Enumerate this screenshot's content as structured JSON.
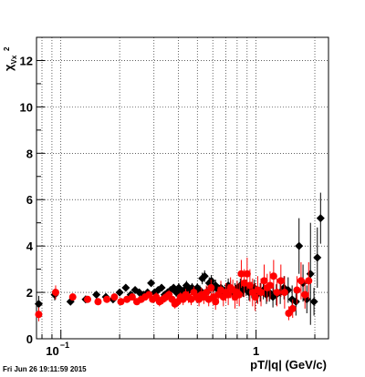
{
  "timestamp": "Fri Jun 26 19:11:59 2015",
  "chart_data": {
    "type": "scatter",
    "title": "",
    "xlabel": "pT/|q| (GeV/c)",
    "ylabel": "χ²_Vx",
    "ylabel_main": "χ",
    "ylabel_sup": "2",
    "ylabel_sub": "Vx",
    "xscale": "log",
    "xlim": [
      0.075,
      2.35
    ],
    "ylim": [
      0,
      13
    ],
    "grid": true,
    "y_ticks": [
      0,
      2,
      4,
      6,
      8,
      10,
      12
    ],
    "y_tick_labels": [
      "0",
      "2",
      "4",
      "6",
      "8",
      "10",
      "12"
    ],
    "x_major_ticks": [
      0.1,
      1
    ],
    "x_major_tick_label_base": "10",
    "x_major_tick_label_exp": "−1",
    "x_major_tick_label_one": "1",
    "x_minor_ticks": [
      0.08,
      0.09,
      0.2,
      0.3,
      0.4,
      0.5,
      0.6,
      0.7,
      0.8,
      0.9,
      2
    ],
    "series": [
      {
        "color": "#000000",
        "marker": "diamond",
        "x": [
          0.077,
          0.093,
          0.112,
          0.134,
          0.152,
          0.17,
          0.185,
          0.2,
          0.215,
          0.228,
          0.24,
          0.252,
          0.265,
          0.278,
          0.29,
          0.302,
          0.315,
          0.328,
          0.34,
          0.352,
          0.365,
          0.378,
          0.39,
          0.402,
          0.415,
          0.428,
          0.44,
          0.455,
          0.47,
          0.485,
          0.5,
          0.515,
          0.53,
          0.545,
          0.56,
          0.575,
          0.59,
          0.605,
          0.62,
          0.64,
          0.66,
          0.68,
          0.7,
          0.72,
          0.74,
          0.76,
          0.78,
          0.8,
          0.83,
          0.86,
          0.89,
          0.92,
          0.95,
          0.98,
          1.01,
          1.05,
          1.09,
          1.13,
          1.17,
          1.22,
          1.27,
          1.33,
          1.39,
          1.46,
          1.53,
          1.6,
          1.66,
          1.74,
          1.82,
          1.9,
          1.98,
          2.06,
          2.14
        ],
        "y": [
          1.5,
          1.9,
          1.6,
          1.7,
          1.9,
          1.8,
          1.7,
          2.0,
          2.2,
          1.9,
          2.1,
          2.0,
          1.9,
          2.0,
          2.4,
          2.0,
          2.1,
          2.2,
          1.9,
          2.0,
          2.1,
          2.2,
          2.0,
          2.2,
          2.0,
          2.1,
          2.3,
          2.1,
          2.2,
          2.0,
          2.2,
          2.1,
          2.6,
          2.7,
          2.0,
          2.4,
          2.5,
          2.2,
          2.3,
          2.1,
          2.2,
          2.0,
          2.1,
          2.3,
          2.2,
          2.0,
          2.1,
          2.2,
          2.3,
          2.1,
          2.2,
          2.0,
          2.1,
          2.2,
          1.9,
          2.0,
          2.1,
          1.9,
          2.0,
          1.8,
          1.9,
          2.0,
          2.2,
          2.1,
          1.7,
          1.6,
          4.0,
          2.4,
          1.7,
          2.8,
          1.6,
          3.5,
          5.2
        ],
        "yerr": [
          0.35,
          0.25,
          0.15,
          0.15,
          0.15,
          0.15,
          0.15,
          0.15,
          0.15,
          0.15,
          0.15,
          0.15,
          0.15,
          0.15,
          0.15,
          0.15,
          0.15,
          0.15,
          0.15,
          0.15,
          0.15,
          0.15,
          0.2,
          0.2,
          0.2,
          0.2,
          0.2,
          0.2,
          0.2,
          0.2,
          0.2,
          0.2,
          0.25,
          0.25,
          0.25,
          0.25,
          0.25,
          0.25,
          0.25,
          0.25,
          0.25,
          0.25,
          0.25,
          0.3,
          0.3,
          0.3,
          0.3,
          0.3,
          0.3,
          0.3,
          0.35,
          0.35,
          0.35,
          0.35,
          0.35,
          0.4,
          0.4,
          0.4,
          0.4,
          0.45,
          0.45,
          0.5,
          0.5,
          0.55,
          0.6,
          0.6,
          1.2,
          0.8,
          0.6,
          2.2,
          0.6,
          1.3,
          1.1
        ]
      },
      {
        "color": "#ff0000",
        "marker": "circle",
        "x": [
          0.077,
          0.094,
          0.115,
          0.137,
          0.155,
          0.172,
          0.188,
          0.203,
          0.218,
          0.232,
          0.245,
          0.258,
          0.27,
          0.283,
          0.295,
          0.308,
          0.32,
          0.333,
          0.346,
          0.358,
          0.371,
          0.384,
          0.397,
          0.41,
          0.423,
          0.436,
          0.45,
          0.465,
          0.48,
          0.495,
          0.51,
          0.525,
          0.54,
          0.556,
          0.572,
          0.588,
          0.604,
          0.62,
          0.64,
          0.66,
          0.68,
          0.7,
          0.72,
          0.74,
          0.76,
          0.78,
          0.8,
          0.82,
          0.84,
          0.87,
          0.9,
          0.93,
          0.96,
          0.99,
          1.02,
          1.06,
          1.1,
          1.14,
          1.18,
          1.23,
          1.28,
          1.34,
          1.4,
          1.47,
          1.54,
          1.62,
          1.7,
          1.78,
          1.86
        ],
        "y": [
          1.05,
          2.0,
          1.8,
          1.7,
          1.6,
          1.7,
          1.8,
          1.6,
          1.7,
          1.8,
          1.6,
          1.7,
          1.8,
          1.9,
          1.7,
          1.8,
          1.6,
          1.7,
          1.8,
          1.9,
          1.7,
          1.5,
          1.6,
          1.8,
          1.7,
          1.9,
          1.8,
          1.7,
          2.0,
          1.8,
          1.7,
          1.9,
          1.8,
          2.0,
          1.7,
          2.2,
          1.8,
          1.6,
          1.9,
          2.1,
          1.8,
          2.0,
          1.9,
          2.2,
          2.1,
          1.8,
          2.0,
          1.9,
          2.8,
          2.4,
          2.8,
          2.3,
          2.0,
          1.8,
          2.1,
          2.0,
          2.5,
          2.2,
          2.3,
          2.7,
          2.0,
          2.5,
          2.0,
          1.1,
          1.3,
          2.1,
          2.5,
          1.9,
          2.5
        ],
        "yerr": [
          0.3,
          0.3,
          0.15,
          0.15,
          0.15,
          0.15,
          0.15,
          0.15,
          0.15,
          0.15,
          0.15,
          0.15,
          0.15,
          0.15,
          0.15,
          0.2,
          0.2,
          0.2,
          0.2,
          0.2,
          0.2,
          0.2,
          0.2,
          0.2,
          0.25,
          0.25,
          0.25,
          0.25,
          0.25,
          0.25,
          0.3,
          0.3,
          0.3,
          0.3,
          0.3,
          0.35,
          0.35,
          0.35,
          0.35,
          0.4,
          0.4,
          0.4,
          0.45,
          0.45,
          0.45,
          0.5,
          0.5,
          0.5,
          0.6,
          0.6,
          0.7,
          0.7,
          0.6,
          0.6,
          0.6,
          0.6,
          0.7,
          0.6,
          0.6,
          0.7,
          0.6,
          0.7,
          0.7,
          0.3,
          0.4,
          0.6,
          0.8,
          0.6,
          0.8
        ]
      }
    ]
  }
}
